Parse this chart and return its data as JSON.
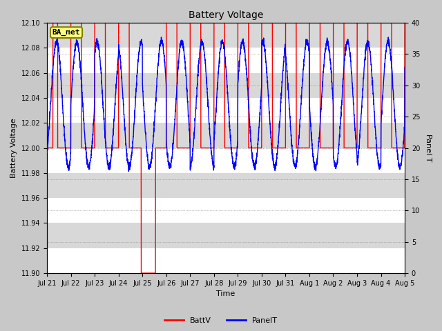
{
  "title": "Battery Voltage",
  "xlabel": "Time",
  "ylabel_left": "Battery Voltage",
  "ylabel_right": "Panel T",
  "ylim_left": [
    11.9,
    12.1
  ],
  "ylim_right": [
    0,
    40
  ],
  "yticks_left": [
    11.9,
    11.92,
    11.94,
    11.96,
    11.98,
    12.0,
    12.02,
    12.04,
    12.06,
    12.08,
    12.1
  ],
  "yticks_right": [
    0,
    5,
    10,
    15,
    20,
    25,
    30,
    35,
    40
  ],
  "fig_bg_color": "#c8c8c8",
  "plot_bg_color": "#d8d8d8",
  "white_band_color": "#ffffff",
  "batt_color": "#ff0000",
  "panel_color": "#0000ff",
  "annotation_text": "BA_met",
  "annotation_bg": "#ffff80",
  "annotation_border": "#808000",
  "x_tick_labels": [
    "Jul 21",
    "Jul 22",
    "Jul 23",
    "Jul 24",
    "Jul 25",
    "Jul 26",
    "Jul 27",
    "Jul 28",
    "Jul 29",
    "Jul 30",
    "Jul 31",
    "Aug 1",
    "Aug 2",
    "Aug 3",
    "Aug 4",
    "Aug 5"
  ],
  "num_days": 15,
  "title_fontsize": 10,
  "axis_fontsize": 8,
  "tick_fontsize": 7
}
